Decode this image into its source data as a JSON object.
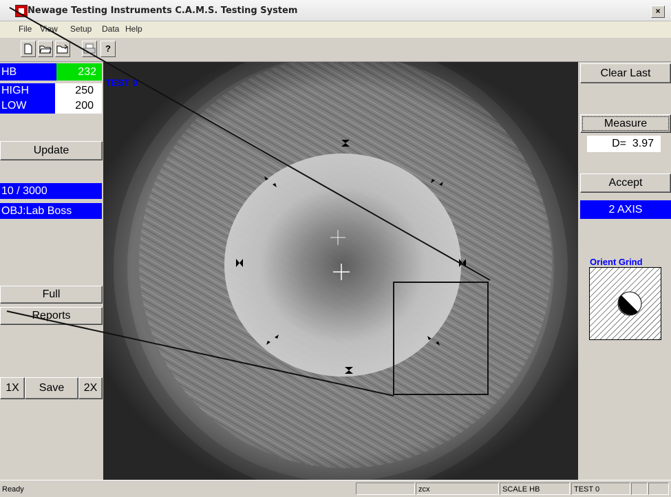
{
  "window": {
    "title": "Newage Testing Instruments C.A.M.S. Testing System",
    "close_label": "×"
  },
  "menu": [
    "File",
    "View",
    "Setup",
    "Data",
    "Help"
  ],
  "toolbar": {
    "icons": [
      "new-file-icon",
      "open-folder-icon",
      "open-file-icon",
      "print-icon",
      "help-icon"
    ],
    "help_label": "?"
  },
  "left_panel": {
    "hb_label": "HB",
    "hb_value": "232",
    "high_label": "HIGH",
    "high_value": "250",
    "low_label": "LOW",
    "low_value": "200",
    "update_label": "Update",
    "load_info": "10 / 3000",
    "obj_info": "OBJ:Lab Boss",
    "full_label": "Full",
    "reports_label": "Reports",
    "zoom_1x": "1X",
    "save_label": "Save",
    "zoom_2x": "2X"
  },
  "image": {
    "overlay_label": "TEST 0"
  },
  "right_panel": {
    "clear_last_label": "Clear Last",
    "measure_label": "Measure",
    "d_value": "D=  3.97",
    "accept_label": "Accept",
    "axis_label": "2 AXIS",
    "orient_grind_label": "Orient Grind"
  },
  "status": {
    "ready": "Ready",
    "cell2": "",
    "cell3": "zcx",
    "scale": "SCALE HB",
    "test": "TEST 0",
    "cell6": "",
    "cell7": ""
  },
  "colors": {
    "blue": "#0000ff",
    "green": "#00e000",
    "overlay_text": "#0000ff"
  }
}
